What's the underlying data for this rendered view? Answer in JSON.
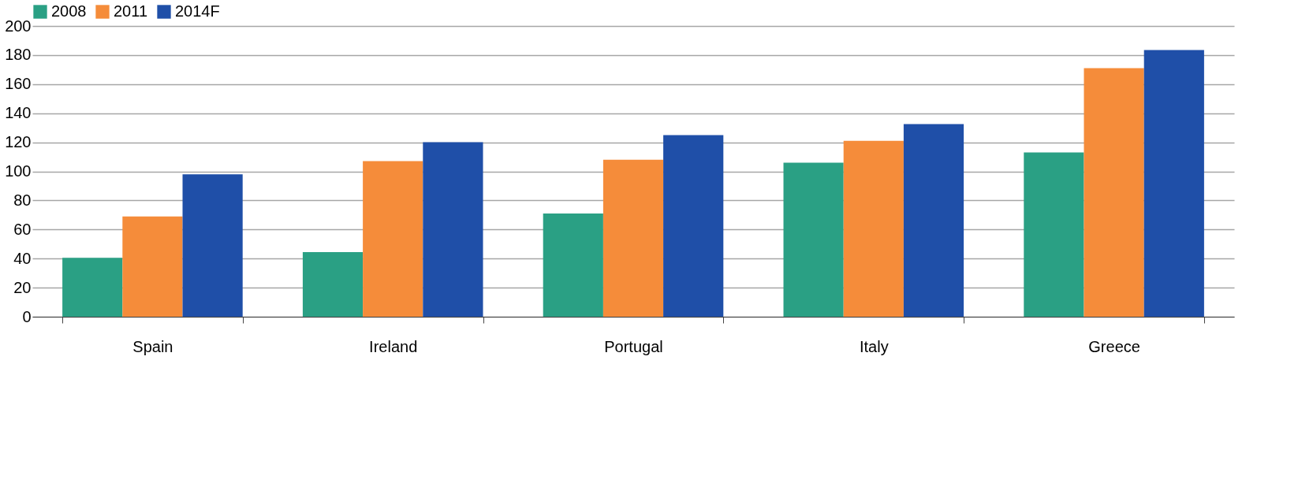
{
  "chart_data": {
    "type": "bar",
    "categories": [
      "Spain",
      "Ireland",
      "Portugal",
      "Italy",
      "Greece"
    ],
    "series": [
      {
        "name": "2008",
        "color": "#2aa084",
        "values": [
          40.5,
          44.5,
          71,
          106,
          113
        ]
      },
      {
        "name": "2011",
        "color": "#f58c3a",
        "values": [
          69,
          107,
          108,
          121,
          171
        ]
      },
      {
        "name": "2014F",
        "color": "#1f4fa8",
        "values": [
          98,
          120,
          125,
          132.5,
          183.5
        ]
      }
    ],
    "ylim": [
      0,
      200
    ],
    "yticks": [
      0,
      20,
      40,
      60,
      80,
      100,
      120,
      140,
      160,
      180,
      200
    ],
    "grid": "y",
    "legend": "top left"
  }
}
